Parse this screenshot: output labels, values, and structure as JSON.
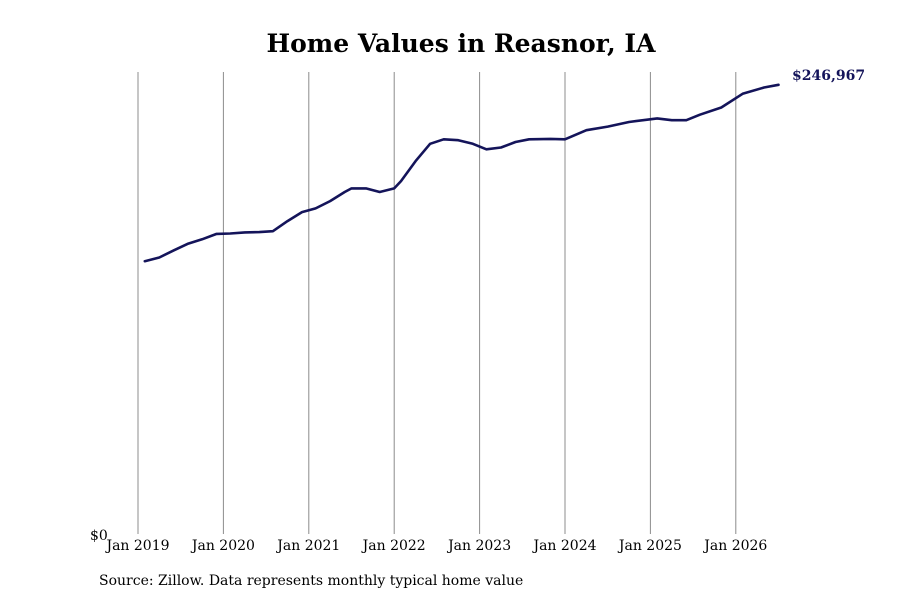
{
  "chart_data": {
    "type": "line",
    "title": "Home Values in Reasnor, IA",
    "xlabel": "",
    "ylabel": "",
    "y_tick_label": "$0",
    "xlim": [
      2019.0,
      2026.6
    ],
    "ylim": [
      0,
      254000
    ],
    "x_ticks": [
      {
        "x": 2019,
        "label": "Jan 2019"
      },
      {
        "x": 2020,
        "label": "Jan 2020"
      },
      {
        "x": 2021,
        "label": "Jan 2021"
      },
      {
        "x": 2022,
        "label": "Jan 2022"
      },
      {
        "x": 2023,
        "label": "Jan 2023"
      },
      {
        "x": 2024,
        "label": "Jan 2024"
      },
      {
        "x": 2025,
        "label": "Jan 2025"
      },
      {
        "x": 2026,
        "label": "Jan 2026"
      }
    ],
    "grid": "vertical",
    "line_color": "#14145a",
    "end_label": "$246,967",
    "series": [
      {
        "points": [
          [
            2019.08,
            150000
          ],
          [
            2019.25,
            152000
          ],
          [
            2019.42,
            156000
          ],
          [
            2019.58,
            159500
          ],
          [
            2019.75,
            162000
          ],
          [
            2019.92,
            165000
          ],
          [
            2020.08,
            165200
          ],
          [
            2020.25,
            165800
          ],
          [
            2020.42,
            166000
          ],
          [
            2020.58,
            166500
          ],
          [
            2020.75,
            172000
          ],
          [
            2020.92,
            177000
          ],
          [
            2021.08,
            179000
          ],
          [
            2021.25,
            183000
          ],
          [
            2021.42,
            188000
          ],
          [
            2021.5,
            190000
          ],
          [
            2021.67,
            190000
          ],
          [
            2021.83,
            188000
          ],
          [
            2022.0,
            190000
          ],
          [
            2022.08,
            194000
          ],
          [
            2022.25,
            205000
          ],
          [
            2022.42,
            214500
          ],
          [
            2022.58,
            217000
          ],
          [
            2022.75,
            216500
          ],
          [
            2022.92,
            214500
          ],
          [
            2023.08,
            211500
          ],
          [
            2023.25,
            212500
          ],
          [
            2023.42,
            215500
          ],
          [
            2023.58,
            217000
          ],
          [
            2023.83,
            217200
          ],
          [
            2024.0,
            217000
          ],
          [
            2024.25,
            222000
          ],
          [
            2024.5,
            224000
          ],
          [
            2024.75,
            226500
          ],
          [
            2025.08,
            228500
          ],
          [
            2025.25,
            227500
          ],
          [
            2025.42,
            227500
          ],
          [
            2025.58,
            230500
          ],
          [
            2025.83,
            234500
          ],
          [
            2026.08,
            242000
          ],
          [
            2026.33,
            245500
          ],
          [
            2026.5,
            246967
          ]
        ]
      }
    ]
  },
  "footer": {
    "source": "Source: Zillow. Data represents monthly typical home value"
  }
}
